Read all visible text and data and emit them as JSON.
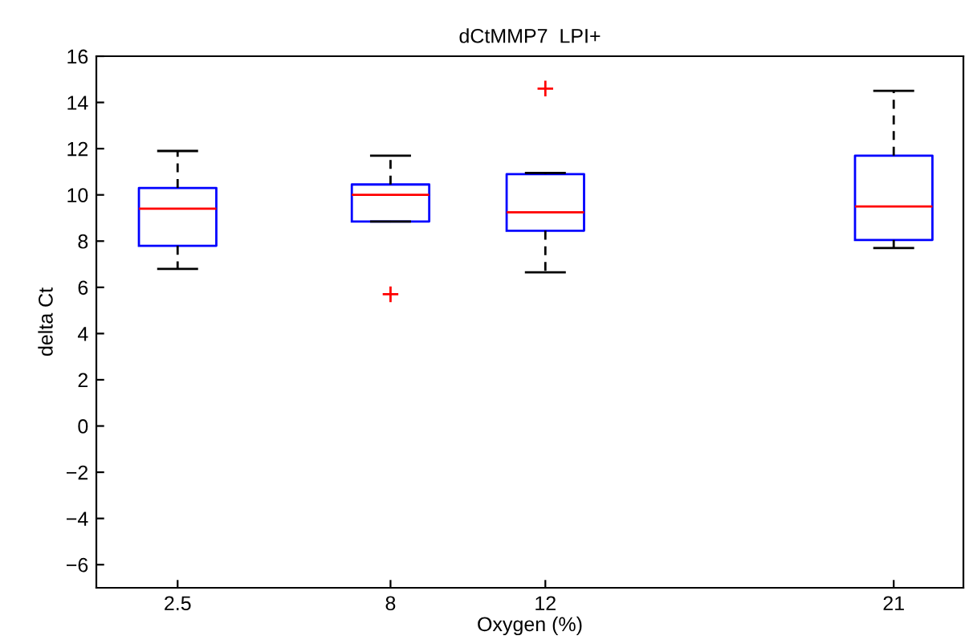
{
  "chart_data": {
    "type": "box",
    "title": "dCtMMP7  LPI+",
    "xlabel": "Oxygen (%)",
    "ylabel": "delta Ct",
    "x": [
      2.5,
      8,
      12,
      21
    ],
    "boxes": [
      {
        "low": 6.8,
        "q1": 7.8,
        "median": 9.4,
        "q3": 10.3,
        "high": 11.9
      },
      {
        "low": 8.85,
        "q1": 8.85,
        "median": 10.0,
        "q3": 10.45,
        "high": 11.7,
        "outliers": [
          5.7
        ]
      },
      {
        "low": 6.65,
        "q1": 8.45,
        "median": 9.25,
        "q3": 10.9,
        "high": 10.95,
        "outliers": [
          14.6
        ]
      },
      {
        "low": 7.7,
        "q1": 8.05,
        "median": 9.5,
        "q3": 11.7,
        "high": 14.5
      }
    ],
    "color": "#0000ff",
    "xlim": [
      0.4,
      22.8
    ],
    "xticks": [
      2.5,
      8,
      12,
      21
    ],
    "ylim": [
      -7,
      16
    ],
    "yticks": [
      {
        "value": -6,
        "label": "−6"
      },
      {
        "value": -4,
        "label": "−4"
      },
      {
        "value": -2,
        "label": "−2"
      },
      0,
      2,
      4,
      6,
      8,
      10,
      12,
      14,
      16
    ],
    "grid": false
  }
}
